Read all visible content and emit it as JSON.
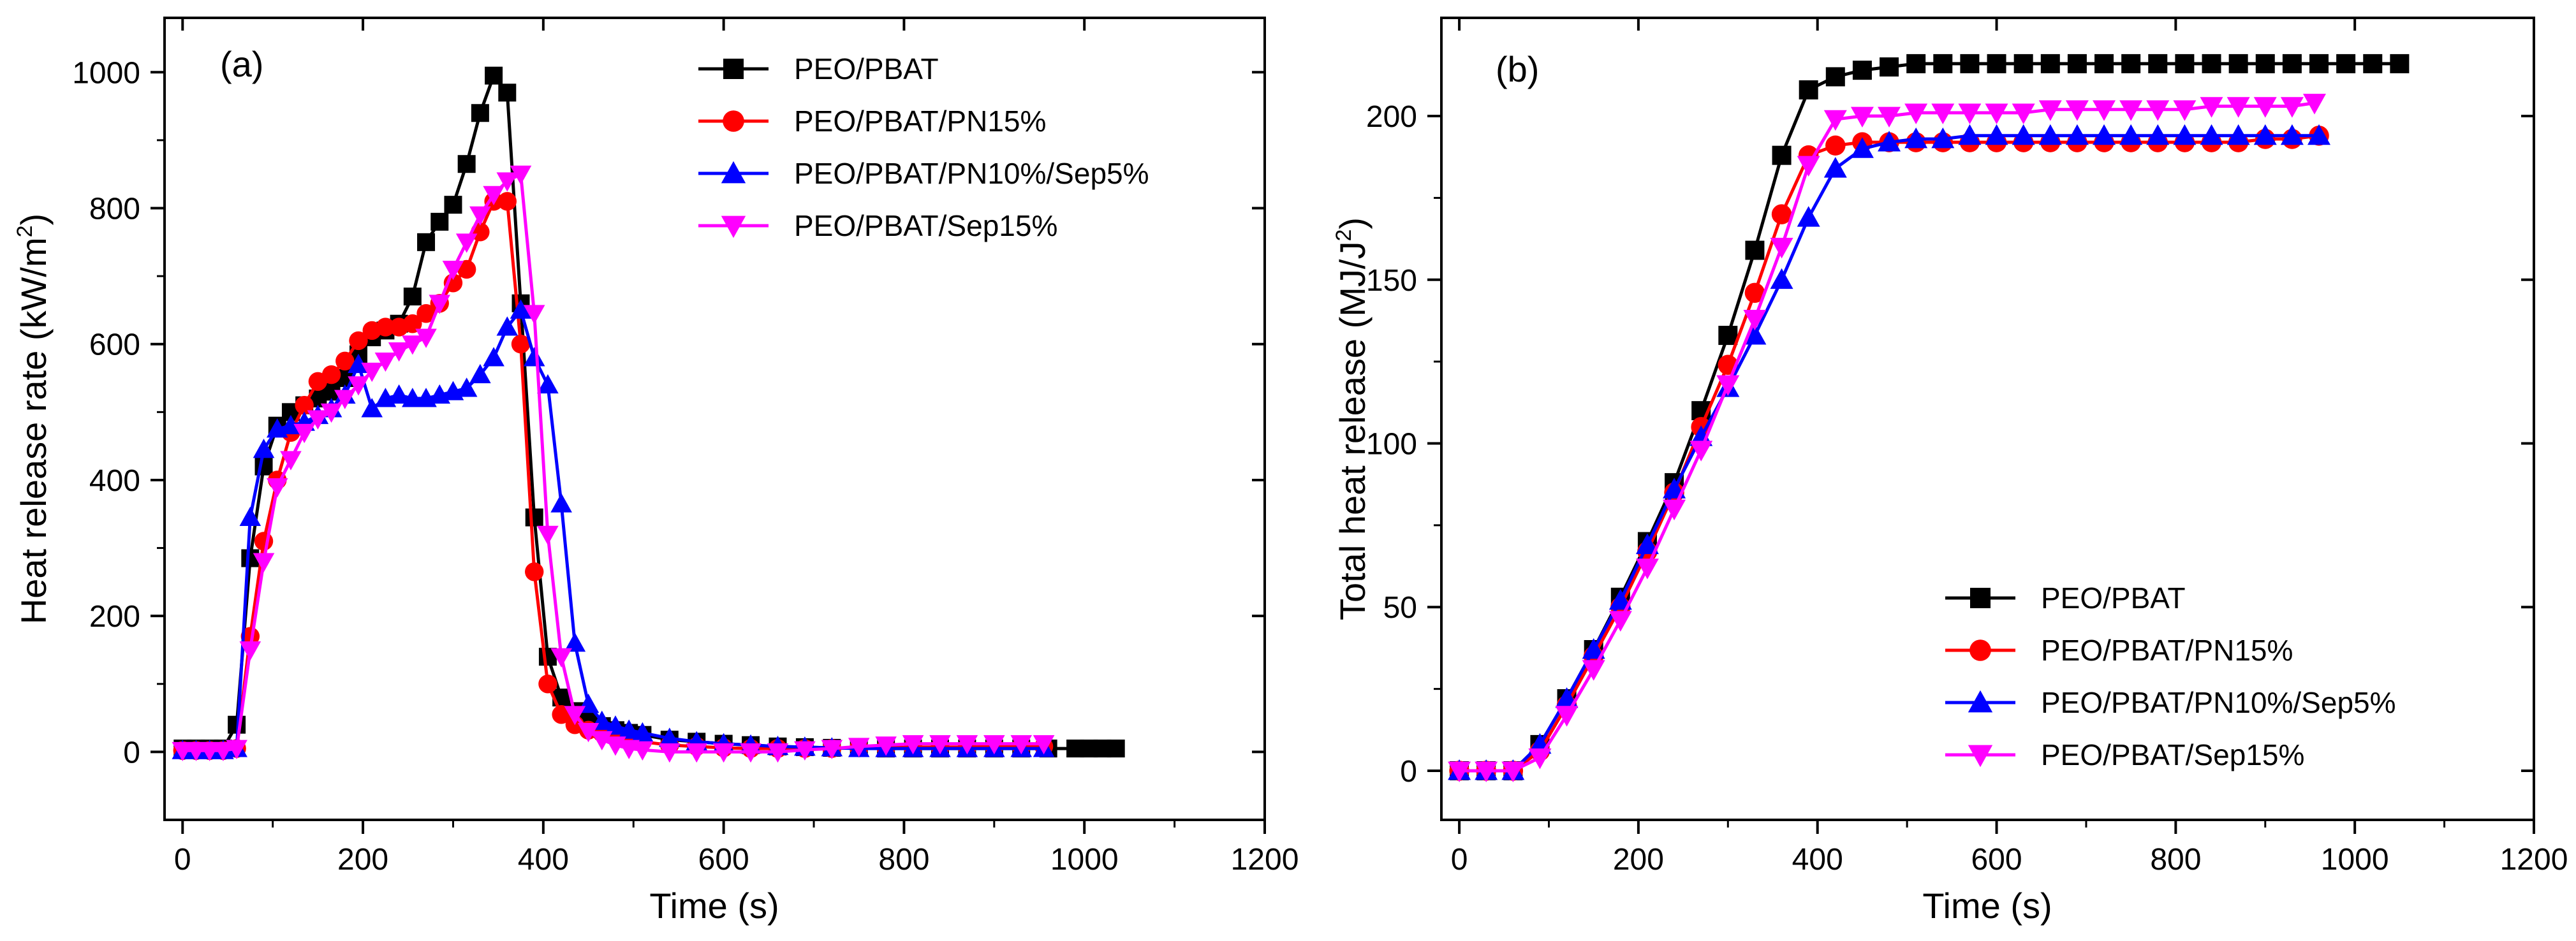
{
  "chart_data": [
    {
      "type": "line",
      "panel_label": "(a)",
      "xlabel": "Time (s)",
      "ylabel_main": "Heat release rate (kW/m",
      "ylabel_sup": "2",
      "ylabel_close": ")",
      "xlim": [
        -20,
        1200
      ],
      "ylim": [
        -100,
        1080
      ],
      "xticks": [
        0,
        200,
        400,
        600,
        800,
        1000,
        1200
      ],
      "yticks": [
        0,
        200,
        400,
        600,
        800,
        1000
      ],
      "legend_position": "top-right",
      "series": [
        {
          "name": "PEO/PBAT",
          "color": "#000000",
          "marker": "square",
          "x": [
            0,
            15,
            30,
            45,
            60,
            75,
            90,
            105,
            120,
            135,
            150,
            165,
            180,
            195,
            210,
            225,
            240,
            255,
            270,
            285,
            300,
            315,
            330,
            345,
            360,
            375,
            390,
            405,
            420,
            435,
            450,
            465,
            480,
            495,
            510,
            540,
            570,
            600,
            630,
            660,
            690,
            720,
            750,
            780,
            810,
            840,
            870,
            900,
            930,
            960,
            990,
            1005,
            1020,
            1035
          ],
          "y": [
            5,
            5,
            5,
            5,
            40,
            285,
            420,
            480,
            500,
            510,
            520,
            530,
            550,
            585,
            610,
            620,
            630,
            670,
            750,
            780,
            805,
            865,
            940,
            995,
            970,
            660,
            345,
            140,
            80,
            60,
            45,
            38,
            32,
            28,
            25,
            18,
            15,
            12,
            10,
            8,
            7,
            6,
            6,
            5,
            5,
            5,
            5,
            5,
            5,
            5,
            5,
            5,
            5,
            5
          ]
        },
        {
          "name": "PEO/PBAT/PN15%",
          "color": "#ff0000",
          "marker": "circle",
          "x": [
            0,
            15,
            30,
            45,
            60,
            75,
            90,
            105,
            120,
            135,
            150,
            165,
            180,
            195,
            210,
            225,
            240,
            255,
            270,
            285,
            300,
            315,
            330,
            345,
            360,
            375,
            390,
            405,
            420,
            435,
            450,
            465,
            480,
            495,
            510,
            540,
            570,
            600,
            630,
            660,
            690,
            720,
            750,
            780,
            810,
            840,
            870,
            900,
            930,
            955
          ],
          "y": [
            2,
            2,
            2,
            2,
            5,
            170,
            310,
            400,
            470,
            510,
            545,
            555,
            575,
            605,
            620,
            625,
            625,
            630,
            645,
            660,
            690,
            710,
            765,
            810,
            810,
            600,
            265,
            100,
            55,
            40,
            32,
            28,
            22,
            18,
            15,
            10,
            8,
            6,
            5,
            5,
            5,
            5,
            6,
            6,
            7,
            7,
            7,
            8,
            8,
            8
          ]
        },
        {
          "name": "PEO/PBAT/PN10%/Sep5%",
          "color": "#0000ff",
          "marker": "triangle-up",
          "x": [
            0,
            15,
            30,
            45,
            60,
            75,
            90,
            105,
            120,
            135,
            150,
            165,
            180,
            195,
            210,
            225,
            240,
            255,
            270,
            285,
            300,
            315,
            330,
            345,
            360,
            375,
            390,
            405,
            420,
            435,
            450,
            465,
            480,
            495,
            510,
            540,
            570,
            600,
            630,
            660,
            690,
            720,
            750,
            780,
            810,
            840,
            870,
            900,
            930,
            955
          ],
          "y": [
            2,
            2,
            2,
            2,
            5,
            345,
            445,
            475,
            480,
            485,
            495,
            505,
            525,
            570,
            505,
            520,
            525,
            520,
            520,
            525,
            530,
            535,
            555,
            580,
            625,
            650,
            580,
            540,
            365,
            160,
            70,
            45,
            38,
            32,
            28,
            20,
            15,
            12,
            10,
            8,
            7,
            6,
            5,
            5,
            5,
            5,
            5,
            5,
            5,
            5
          ]
        },
        {
          "name": "PEO/PBAT/Sep15%",
          "color": "#ff00ff",
          "marker": "triangle-down",
          "x": [
            0,
            15,
            30,
            45,
            60,
            75,
            90,
            105,
            120,
            135,
            150,
            165,
            180,
            195,
            210,
            225,
            240,
            255,
            270,
            285,
            300,
            315,
            330,
            345,
            360,
            375,
            390,
            405,
            420,
            435,
            450,
            465,
            480,
            495,
            510,
            540,
            570,
            600,
            630,
            660,
            690,
            720,
            750,
            780,
            810,
            840,
            870,
            900,
            930,
            955
          ],
          "y": [
            2,
            2,
            2,
            2,
            5,
            150,
            280,
            390,
            430,
            470,
            490,
            500,
            520,
            540,
            560,
            575,
            590,
            600,
            610,
            660,
            710,
            750,
            790,
            820,
            840,
            850,
            645,
            320,
            140,
            55,
            30,
            18,
            10,
            5,
            3,
            0,
            0,
            0,
            0,
            0,
            3,
            5,
            8,
            10,
            12,
            12,
            12,
            12,
            12,
            12
          ]
        }
      ]
    },
    {
      "type": "line",
      "panel_label": "(b)",
      "xlabel": "Time (s)",
      "ylabel_main": "Total heat release (MJ/J",
      "ylabel_sup": "2",
      "ylabel_close": ")",
      "xlim": [
        -20,
        1200
      ],
      "ylim": [
        -15,
        230
      ],
      "xticks": [
        0,
        200,
        400,
        600,
        800,
        1000,
        1200
      ],
      "yticks": [
        0,
        50,
        100,
        150,
        200
      ],
      "legend_position": "bottom-right",
      "series": [
        {
          "name": "PEO/PBAT",
          "color": "#000000",
          "marker": "square",
          "x": [
            0,
            30,
            60,
            90,
            120,
            150,
            180,
            210,
            240,
            270,
            300,
            330,
            360,
            390,
            420,
            450,
            480,
            510,
            540,
            570,
            600,
            630,
            660,
            690,
            720,
            750,
            780,
            810,
            840,
            870,
            900,
            930,
            960,
            990,
            1020,
            1050
          ],
          "y": [
            0,
            0,
            0,
            8,
            22,
            37,
            53,
            70,
            88,
            110,
            133,
            159,
            188,
            208,
            212,
            214,
            215,
            216,
            216,
            216,
            216,
            216,
            216,
            216,
            216,
            216,
            216,
            216,
            216,
            216,
            216,
            216,
            216,
            216,
            216,
            216
          ]
        },
        {
          "name": "PEO/PBAT/PN15%",
          "color": "#ff0000",
          "marker": "circle",
          "x": [
            0,
            30,
            60,
            90,
            120,
            150,
            180,
            210,
            240,
            270,
            300,
            330,
            360,
            390,
            420,
            450,
            480,
            510,
            540,
            570,
            600,
            630,
            660,
            690,
            720,
            750,
            780,
            810,
            840,
            870,
            900,
            930,
            960
          ],
          "y": [
            0,
            0,
            0,
            6,
            20,
            35,
            50,
            67,
            85,
            105,
            124,
            146,
            170,
            188,
            191,
            192,
            192,
            192,
            192,
            192,
            192,
            192,
            192,
            192,
            192,
            192,
            192,
            192,
            192,
            192,
            193,
            193,
            194
          ]
        },
        {
          "name": "PEO/PBAT/PN10%/Sep5%",
          "color": "#0000ff",
          "marker": "triangle-up",
          "x": [
            0,
            30,
            60,
            90,
            120,
            150,
            180,
            210,
            240,
            270,
            300,
            330,
            360,
            390,
            420,
            450,
            480,
            510,
            540,
            570,
            600,
            630,
            660,
            690,
            720,
            750,
            780,
            810,
            840,
            870,
            900,
            930,
            960
          ],
          "y": [
            0,
            0,
            0,
            8,
            22,
            37,
            52,
            69,
            86,
            102,
            117,
            133,
            150,
            169,
            184,
            190,
            192,
            193,
            193,
            194,
            194,
            194,
            194,
            194,
            194,
            194,
            194,
            194,
            194,
            194,
            194,
            194,
            194
          ]
        },
        {
          "name": "PEO/PBAT/Sep15%",
          "color": "#ff00ff",
          "marker": "triangle-down",
          "x": [
            0,
            30,
            60,
            90,
            120,
            150,
            180,
            210,
            240,
            270,
            300,
            330,
            360,
            390,
            420,
            450,
            480,
            510,
            540,
            570,
            600,
            630,
            660,
            690,
            720,
            750,
            780,
            810,
            840,
            870,
            900,
            930,
            955
          ],
          "y": [
            0,
            0,
            0,
            4,
            17,
            31,
            46,
            62,
            80,
            98,
            118,
            138,
            160,
            185,
            199,
            200,
            200,
            201,
            201,
            201,
            201,
            201,
            202,
            202,
            202,
            202,
            202,
            202,
            203,
            203,
            203,
            203,
            204
          ]
        }
      ]
    }
  ]
}
